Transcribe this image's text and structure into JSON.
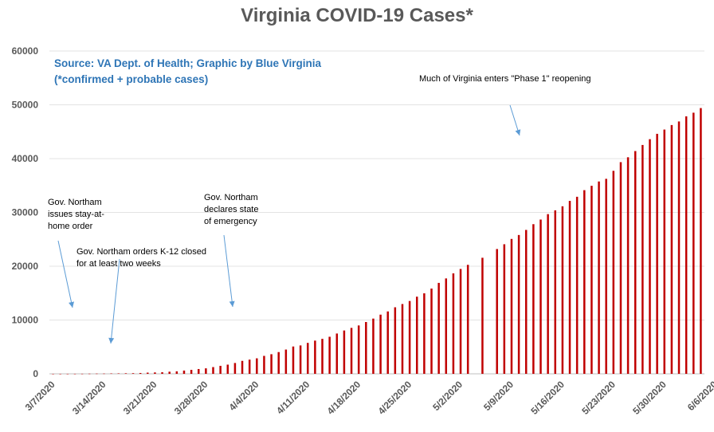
{
  "chart_data": {
    "type": "bar",
    "title": "Virginia COVID-19 Cases*",
    "subtitle_lines": [
      "Source: VA Dept. of Health; Graphic by Blue Virginia",
      "(*confirmed + probable cases)"
    ],
    "start_date": "3/7/2020",
    "ylim": [
      0,
      60000
    ],
    "y_ticks": [
      "0",
      "10000",
      "20000",
      "30000",
      "40000",
      "50000",
      "60000"
    ],
    "x_tick_labels": [
      "3/7/2020",
      "3/14/2020",
      "3/21/2020",
      "3/28/2020",
      "4/4/2020",
      "4/11/2020",
      "4/18/2020",
      "4/25/2020",
      "5/2/2020",
      "5/9/2020",
      "5/16/2020",
      "5/23/2020",
      "5/30/2020",
      "6/6/2020"
    ],
    "bar_color": "#C00000",
    "grid": true,
    "values": [
      2,
      3,
      5,
      9,
      17,
      30,
      41,
      45,
      67,
      77,
      99,
      114,
      152,
      219,
      254,
      290,
      391,
      460,
      604,
      739,
      890,
      1020,
      1250,
      1484,
      1706,
      2012,
      2407,
      2637,
      2878,
      3333,
      3645,
      4042,
      4509,
      5077,
      5274,
      5747,
      6171,
      6500,
      6889,
      7491,
      8053,
      8537,
      8990,
      9630,
      10266,
      10998,
      11594,
      12366,
      12970,
      13535,
      14339,
      14961,
      15846,
      16901,
      17731,
      18671,
      19492,
      20256,
      null,
      21570,
      null,
      23196,
      24081,
      25070,
      25800,
      26746,
      27813,
      28672,
      29683,
      30388,
      31140,
      32145,
      32908,
      34137,
      34950,
      35749,
      36244,
      37727,
      39342,
      40249,
      41401,
      42533,
      43611,
      44607,
      45398,
      46239,
      46905,
      47856,
      48532,
      49397
    ]
  },
  "annotations": [
    {
      "lines": [
        "Gov. Northam",
        "issues stay-at-",
        "home order"
      ]
    },
    {
      "lines": [
        "Gov. Northam orders K-12 closed",
        "for at least two weeks"
      ]
    },
    {
      "lines": [
        "Gov. Northam",
        "declares state",
        "of emergency"
      ]
    },
    {
      "lines": [
        "Much of Virginia enters \"Phase 1\" reopening"
      ]
    }
  ]
}
